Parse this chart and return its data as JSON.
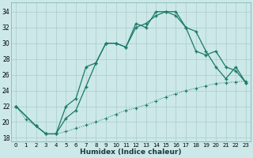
{
  "xlabel": "Humidex (Indice chaleur)",
  "background_color": "#cce8e8",
  "grid_color": "#aacccc",
  "line_color": "#1a7a6a",
  "ylim": [
    17.5,
    35.2
  ],
  "xlim": [
    -0.5,
    23.5
  ],
  "yticks": [
    18,
    20,
    22,
    24,
    26,
    28,
    30,
    32,
    34
  ],
  "xticks": [
    0,
    1,
    2,
    3,
    4,
    5,
    6,
    7,
    8,
    9,
    10,
    11,
    12,
    13,
    14,
    15,
    16,
    17,
    18,
    19,
    20,
    21,
    22,
    23
  ],
  "line1_x": [
    0,
    1,
    2,
    3,
    4,
    5,
    6,
    7,
    8,
    9,
    10,
    11,
    12,
    13,
    14,
    15,
    16,
    17,
    18,
    19,
    20,
    21,
    22,
    23
  ],
  "line1_y": [
    22.0,
    20.3,
    19.5,
    18.5,
    18.5,
    18.8,
    19.2,
    19.6,
    20.0,
    20.5,
    21.0,
    21.5,
    21.8,
    22.2,
    22.7,
    23.2,
    23.6,
    24.0,
    24.3,
    24.6,
    24.9,
    25.0,
    25.1,
    25.2
  ],
  "line2_x": [
    0,
    2,
    3,
    4,
    5,
    6,
    7,
    8,
    9,
    10,
    11,
    12,
    13,
    14,
    15,
    16,
    17,
    18,
    19,
    20,
    21,
    22,
    23
  ],
  "line2_y": [
    22.0,
    19.5,
    18.5,
    18.5,
    20.5,
    21.5,
    24.5,
    27.5,
    30.0,
    30.0,
    29.5,
    32.5,
    32.0,
    34.0,
    34.0,
    34.0,
    32.0,
    31.5,
    29.0,
    27.0,
    25.5,
    27.0,
    25.0
  ],
  "line3_x": [
    0,
    2,
    3,
    4,
    5,
    6,
    7,
    8,
    9,
    10,
    11,
    12,
    13,
    14,
    15,
    16,
    17,
    18,
    19,
    20,
    21,
    22,
    23
  ],
  "line3_y": [
    22.0,
    19.5,
    18.5,
    18.5,
    22.0,
    23.0,
    27.0,
    27.5,
    30.0,
    30.0,
    29.5,
    32.0,
    32.5,
    33.5,
    34.0,
    33.5,
    32.0,
    29.0,
    28.5,
    29.0,
    27.0,
    26.5,
    25.0
  ]
}
